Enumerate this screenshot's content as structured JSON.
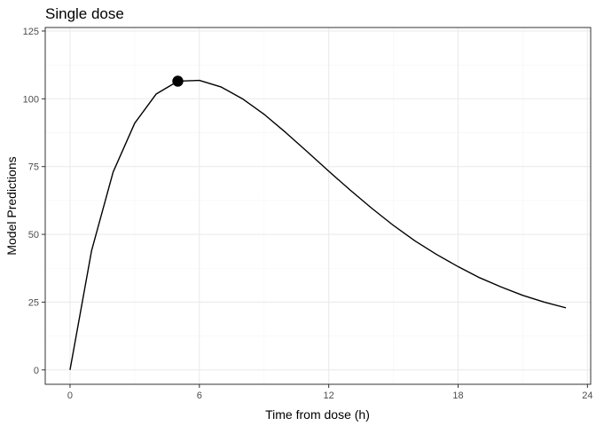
{
  "chart_data": {
    "type": "line",
    "title": "Single dose",
    "xlabel": "Time from dose (h)",
    "ylabel": "Model Predictions",
    "xlim": [
      -1.15,
      24.15
    ],
    "ylim": [
      -5.3,
      126.3
    ],
    "x_ticks": [
      0,
      6,
      12,
      18,
      24
    ],
    "y_ticks": [
      0,
      25,
      50,
      75,
      100,
      125
    ],
    "x_tick_labels": [
      "0",
      "6",
      "12",
      "18",
      "24"
    ],
    "y_tick_labels": [
      "0",
      "25",
      "50",
      "75",
      "100",
      "125"
    ],
    "grid": true,
    "series": [
      {
        "x": [
          0,
          1,
          2,
          3,
          4,
          5,
          6,
          7,
          8,
          9,
          10,
          11,
          12,
          13,
          14,
          15,
          16,
          17,
          18,
          19,
          20,
          21,
          22,
          23
        ],
        "values": [
          0,
          44,
          73,
          91,
          101.8,
          106.5,
          106.8,
          104.4,
          100,
          94.3,
          87.6,
          80.5,
          73.3,
          66.3,
          59.6,
          53.3,
          47.6,
          42.6,
          38.1,
          34,
          30.6,
          27.5,
          25,
          22.9
        ],
        "color": "#000000"
      }
    ],
    "highlight_point": {
      "x": 5,
      "y": 106.5,
      "color": "#000000"
    }
  }
}
